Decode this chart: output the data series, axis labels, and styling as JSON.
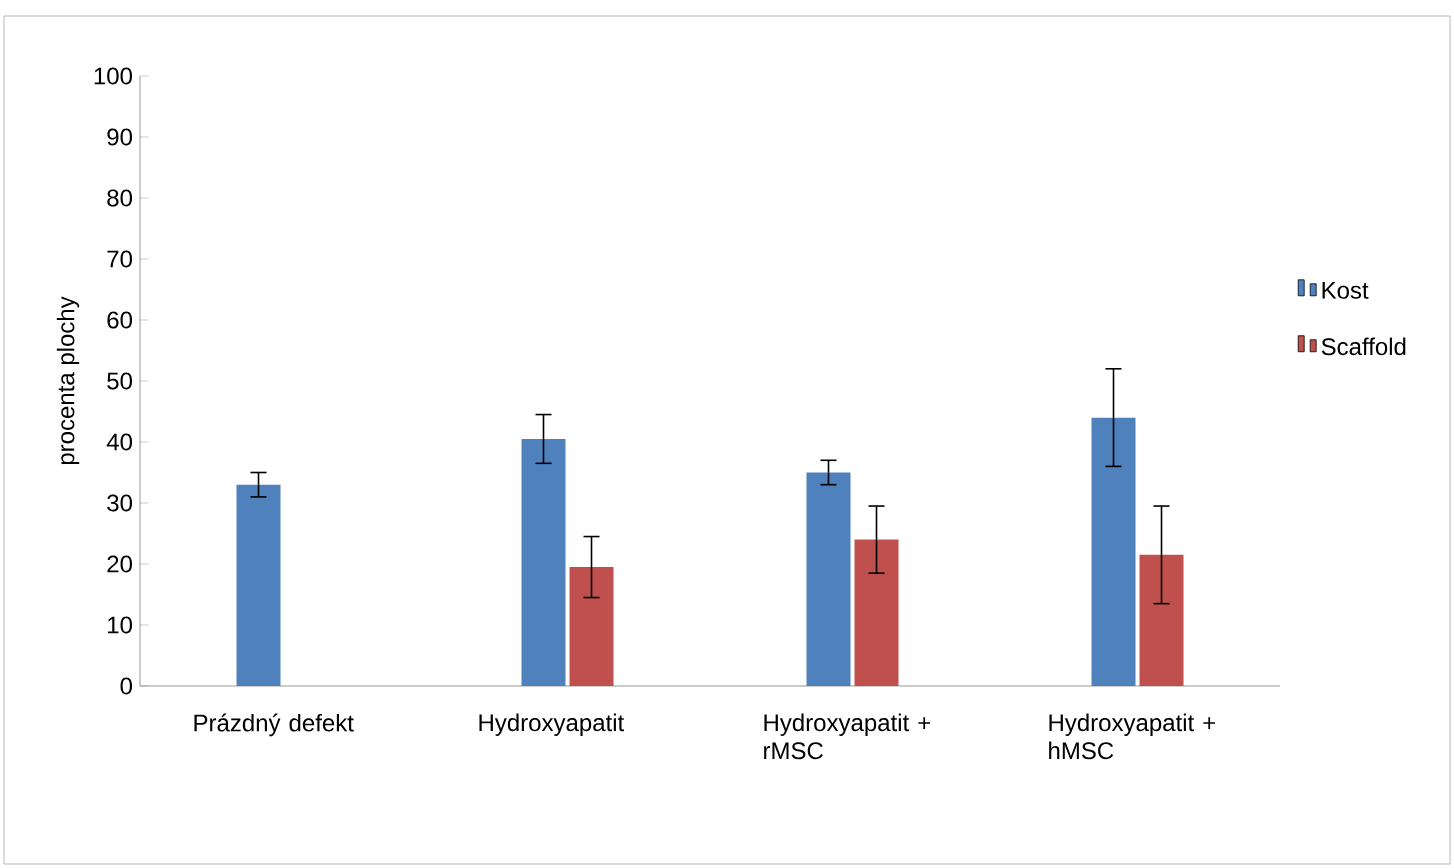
{
  "chart_data": {
    "type": "bar",
    "ylabel": "procenta plochy",
    "categories": [
      "Prázdný defekt",
      "Hydroxyapatit",
      "Hydroxyapatit + rMSC",
      "Hydroxyapatit + hMSC"
    ],
    "series": [
      {
        "name": "Kost",
        "color": "#4f81bd",
        "values": [
          33,
          40.5,
          35,
          44
        ],
        "errors": [
          2,
          4,
          2,
          8
        ]
      },
      {
        "name": "Scaffold",
        "color": "#c0504d",
        "values": [
          null,
          19.5,
          24,
          21.5
        ],
        "errors": [
          null,
          5,
          5.5,
          8
        ]
      }
    ],
    "ylim": [
      0,
      100
    ],
    "yticks": [
      0,
      10,
      20,
      30,
      40,
      50,
      60,
      70,
      80,
      90,
      100
    ],
    "grid": false,
    "legend": "right"
  }
}
